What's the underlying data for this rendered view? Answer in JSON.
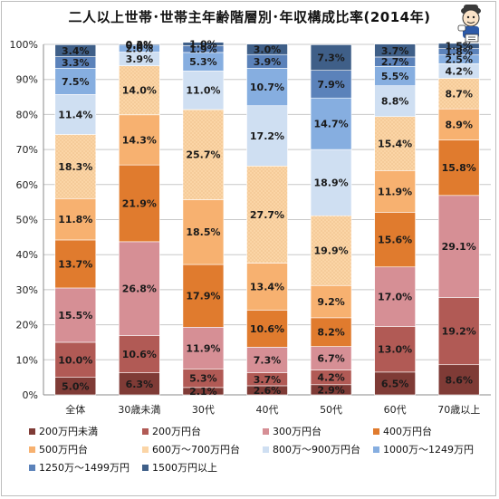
{
  "title": "二人以上世帯･世帯主年齢階層別･年収構成比率(2014年)",
  "colors": [
    "#7f3b36",
    "#b15a55",
    "#d68f95",
    "#e07b2e",
    "#f7b170",
    "#fbd5a6",
    "#cfdff2",
    "#86aee0",
    "#5b82ba",
    "#3f5f88"
  ],
  "chart_data": {
    "type": "bar",
    "stacked": true,
    "title": "二人以上世帯･世帯主年齢階層別･年収構成比率(2014年)",
    "categories": [
      "全体",
      "30歳未満",
      "30代",
      "40代",
      "50代",
      "60代",
      "70歳以上"
    ],
    "ylim": [
      0,
      100
    ],
    "yticks": [
      "0%",
      "10%",
      "20%",
      "30%",
      "40%",
      "50%",
      "60%",
      "70%",
      "80%",
      "90%",
      "100%"
    ],
    "grid": true,
    "legend_position": "bottom",
    "series": [
      {
        "name": "200万円未満",
        "values": [
          5.0,
          6.3,
          2.1,
          2.6,
          2.9,
          6.5,
          8.6
        ],
        "labels": [
          "5.0%",
          "6.3%",
          "2.1%",
          "2.6%",
          "2.9%",
          "6.5%",
          "8.6%"
        ]
      },
      {
        "name": "200万円台",
        "values": [
          10.0,
          10.6,
          5.3,
          3.7,
          4.2,
          13.0,
          19.2
        ],
        "labels": [
          "10.0%",
          "10.6%",
          "5.3%",
          "3.7%",
          "4.2%",
          "13.0%",
          "19.2%"
        ]
      },
      {
        "name": "300万円台",
        "values": [
          15.5,
          26.8,
          11.9,
          7.3,
          6.7,
          17.0,
          29.1
        ],
        "labels": [
          "15.5%",
          "26.8%",
          "11.9%",
          "7.3%",
          "6.7%",
          "17.0%",
          "29.1%"
        ]
      },
      {
        "name": "400万円台",
        "values": [
          13.7,
          21.9,
          17.9,
          10.6,
          8.2,
          15.6,
          15.8
        ],
        "labels": [
          "13.7%",
          "21.9%",
          "17.9%",
          "10.6%",
          "8.2%",
          "15.6%",
          "15.8%"
        ]
      },
      {
        "name": "500万円台",
        "values": [
          11.8,
          14.3,
          18.5,
          13.4,
          9.2,
          11.9,
          8.9
        ],
        "labels": [
          "11.8%",
          "14.3%",
          "18.5%",
          "13.4%",
          "9.2%",
          "11.9%",
          "8.9%"
        ]
      },
      {
        "name": "600万～700万円台",
        "values": [
          18.3,
          14.0,
          25.7,
          27.7,
          19.9,
          15.4,
          8.7
        ],
        "labels": [
          "18.3%",
          "14.0%",
          "25.7%",
          "27.7%",
          "19.9%",
          "15.4%",
          "8.7%"
        ]
      },
      {
        "name": "800万～900万円台",
        "values": [
          11.4,
          3.9,
          11.0,
          17.2,
          18.9,
          8.8,
          4.2
        ],
        "labels": [
          "11.4%",
          "3.9%",
          "11.0%",
          "17.2%",
          "18.9%",
          "8.8%",
          "4.2%"
        ]
      },
      {
        "name": "1000万～1249万円",
        "values": [
          7.5,
          2.0,
          5.3,
          10.7,
          14.7,
          5.5,
          2.5
        ],
        "labels": [
          "7.5%",
          "2.0%",
          "5.3%",
          "10.7%",
          "14.7%",
          "5.5%",
          "2.5%"
        ]
      },
      {
        "name": "1250万～1499万円",
        "values": [
          3.3,
          0.0,
          1.9,
          3.9,
          7.9,
          2.7,
          1.8
        ],
        "labels": [
          "3.3%",
          "0.0%",
          "1.9%",
          "3.9%",
          "7.9%",
          "2.7%",
          "1.8%"
        ]
      },
      {
        "name": "1500万円以上",
        "values": [
          3.4,
          0.3,
          1.0,
          3.0,
          7.3,
          3.7,
          1.5
        ],
        "labels": [
          "3.4%",
          "0.3%",
          "1.0%",
          "3.0%",
          "7.3%",
          "3.7%",
          "1.5%"
        ]
      }
    ]
  }
}
